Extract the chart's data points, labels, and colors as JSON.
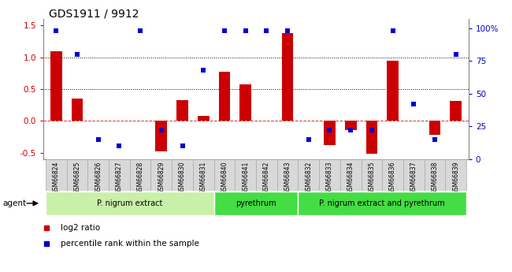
{
  "title": "GDS1911 / 9912",
  "samples": [
    "GSM66824",
    "GSM66825",
    "GSM66826",
    "GSM66827",
    "GSM66828",
    "GSM66829",
    "GSM66830",
    "GSM66831",
    "GSM66840",
    "GSM66841",
    "GSM66842",
    "GSM66843",
    "GSM66832",
    "GSM66833",
    "GSM66834",
    "GSM66835",
    "GSM66836",
    "GSM66837",
    "GSM66838",
    "GSM66839"
  ],
  "log2_ratio": [
    1.1,
    0.35,
    0.0,
    0.0,
    0.0,
    -0.48,
    0.33,
    0.08,
    0.77,
    0.58,
    0.0,
    1.38,
    0.0,
    -0.38,
    -0.15,
    -0.52,
    0.95,
    0.0,
    -0.22,
    0.32
  ],
  "percentile_rank": [
    98,
    80,
    15,
    10,
    98,
    22,
    10,
    68,
    98,
    98,
    98,
    98,
    15,
    22,
    22,
    22,
    98,
    42,
    15,
    80
  ],
  "groups": [
    {
      "label": "P. nigrum extract",
      "start": 0,
      "end": 7,
      "color": "#c8f0a8"
    },
    {
      "label": "pyrethrum",
      "start": 8,
      "end": 11,
      "color": "#44dd44"
    },
    {
      "label": "P. nigrum extract and pyrethrum",
      "start": 12,
      "end": 19,
      "color": "#44dd44"
    }
  ],
  "ylim_left": [
    -0.6,
    1.6
  ],
  "ylim_right": [
    0,
    107
  ],
  "yticks_left": [
    -0.5,
    0.0,
    0.5,
    1.0,
    1.5
  ],
  "yticks_right": [
    0,
    25,
    50,
    75,
    100
  ],
  "hlines_dotted": [
    0.5,
    1.0
  ],
  "hline_dashed": 0.0,
  "bar_color": "#cc0000",
  "dot_color": "#0000cc",
  "legend_red": "log2 ratio",
  "legend_blue": "percentile rank within the sample",
  "agent_label": "agent",
  "tickbox_color": "#d8d8d8",
  "tickbox_border": "#aaaaaa"
}
